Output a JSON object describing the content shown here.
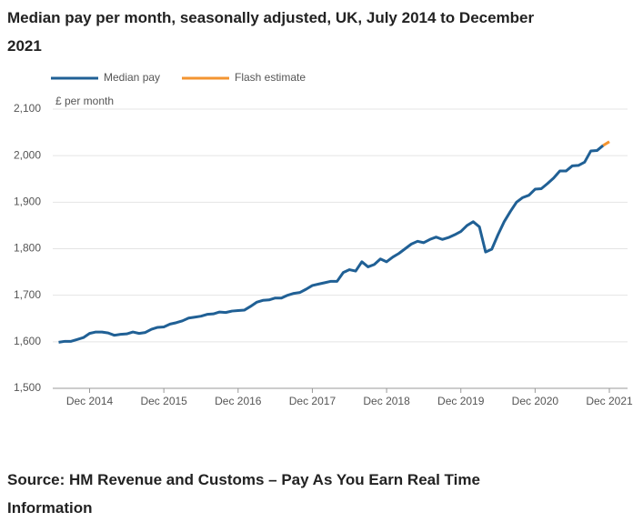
{
  "chart_data": {
    "type": "line",
    "title": "Median pay per month, seasonally adjusted, UK, July 2014 to December 2021",
    "y_label": "£ per month",
    "source": "Source: HM Revenue and Customs – Pay As You Earn Real Time Information",
    "categories": [
      null,
      null,
      null,
      null,
      null,
      "Dec 2014",
      null,
      null,
      null,
      null,
      null,
      null,
      null,
      null,
      null,
      null,
      null,
      "Dec 2015",
      null,
      null,
      null,
      null,
      null,
      null,
      null,
      null,
      null,
      null,
      null,
      "Dec 2016",
      null,
      null,
      null,
      null,
      null,
      null,
      null,
      null,
      null,
      null,
      null,
      "Dec 2017",
      null,
      null,
      null,
      null,
      null,
      null,
      null,
      null,
      null,
      null,
      null,
      "Dec 2018",
      null,
      null,
      null,
      null,
      null,
      null,
      null,
      null,
      null,
      null,
      null,
      "Dec 2019",
      null,
      null,
      null,
      null,
      null,
      null,
      null,
      null,
      null,
      null,
      null,
      "Dec 2020",
      null,
      null,
      null,
      null,
      null,
      null,
      null,
      null,
      null,
      null,
      null,
      "Dec 2021"
    ],
    "series": [
      {
        "name": "Median pay",
        "color": "#206095",
        "values": [
          1599,
          1601,
          1601,
          1605,
          1609,
          1618,
          1621,
          1621,
          1619,
          1614,
          1616,
          1617,
          1621,
          1618,
          1620,
          1627,
          1631,
          1632,
          1638,
          1641,
          1645,
          1651,
          1653,
          1655,
          1659,
          1660,
          1664,
          1663,
          1666,
          1667,
          1668,
          1676,
          1685,
          1689,
          1690,
          1694,
          1694,
          1700,
          1704,
          1706,
          1713,
          1721,
          1724,
          1727,
          1730,
          1730,
          1749,
          1755,
          1752,
          1772,
          1761,
          1766,
          1778,
          1772,
          1782,
          1790,
          1800,
          1810,
          1816,
          1813,
          1820,
          1825,
          1820,
          1824,
          1830,
          1837,
          1850,
          1858,
          1847,
          1793,
          1799,
          1830,
          1858,
          1880,
          1900,
          1910,
          1915,
          1928,
          1929,
          1940,
          1952,
          1967,
          1967,
          1978,
          1979,
          1986,
          2010,
          2011,
          2022,
          null
        ]
      },
      {
        "name": "Flash estimate",
        "color": "#f39431",
        "values": [
          null,
          null,
          null,
          null,
          null,
          null,
          null,
          null,
          null,
          null,
          null,
          null,
          null,
          null,
          null,
          null,
          null,
          null,
          null,
          null,
          null,
          null,
          null,
          null,
          null,
          null,
          null,
          null,
          null,
          null,
          null,
          null,
          null,
          null,
          null,
          null,
          null,
          null,
          null,
          null,
          null,
          null,
          null,
          null,
          null,
          null,
          null,
          null,
          null,
          null,
          null,
          null,
          null,
          null,
          null,
          null,
          null,
          null,
          null,
          null,
          null,
          null,
          null,
          null,
          null,
          null,
          null,
          null,
          null,
          null,
          null,
          null,
          null,
          null,
          null,
          null,
          null,
          null,
          null,
          null,
          null,
          null,
          null,
          null,
          null,
          null,
          null,
          null,
          2022,
          2030
        ]
      }
    ],
    "ylim": [
      1500,
      2100
    ],
    "yticks": [
      {
        "value": 1500,
        "label": "1,500"
      },
      {
        "value": 1600,
        "label": "1,600"
      },
      {
        "value": 1700,
        "label": "1,700"
      },
      {
        "value": 1800,
        "label": "1,800"
      },
      {
        "value": 1900,
        "label": "1,900"
      },
      {
        "value": 2000,
        "label": "2,000"
      },
      {
        "value": 2100,
        "label": "2,100"
      }
    ],
    "grid": true
  }
}
